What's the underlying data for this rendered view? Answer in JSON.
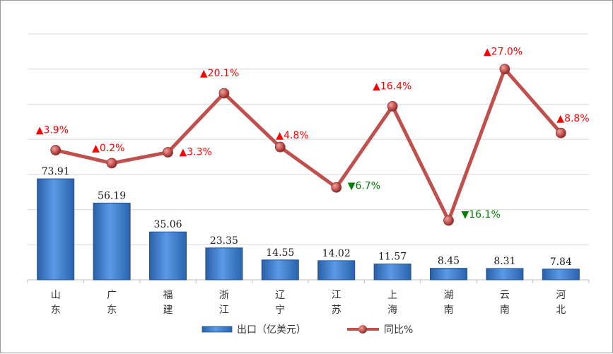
{
  "chart_data": {
    "type": "bar",
    "categories": [
      "山东",
      "广东",
      "福建",
      "浙江",
      "辽宁",
      "江苏",
      "上海",
      "湖南",
      "云南",
      "河北"
    ],
    "series": [
      {
        "name": "出口（亿美元）",
        "type": "bar",
        "values": [
          73.91,
          56.19,
          35.06,
          23.35,
          14.55,
          14.02,
          11.57,
          8.45,
          8.31,
          7.84
        ],
        "labels": [
          "73.91",
          "56.19",
          "35.06",
          "23.35",
          "14.55",
          "14.02",
          "11.57",
          "8.45",
          "8.31",
          "7.84"
        ],
        "color": "#3f7fd0"
      },
      {
        "name": "同比%",
        "type": "line",
        "values": [
          3.9,
          0.2,
          3.3,
          20.1,
          4.8,
          -6.7,
          16.4,
          -16.1,
          27.0,
          8.8
        ],
        "labels": [
          "▲3.9%",
          "▲0.2%",
          "▲3.3%",
          "▲20.1%",
          "▲4.8%",
          "▼6.7%",
          "▲16.4%",
          "▼16.1%",
          "▲27.0%",
          "▲8.8%"
        ],
        "color": "#c0504d"
      }
    ],
    "bar_ylim": [
      0,
      180
    ],
    "line_ylim": [
      -33,
      37
    ],
    "grid": true,
    "legend": "bottom",
    "colors": {
      "up": "#ff0000",
      "down": "#008000",
      "grid": "#d9d9d9"
    }
  }
}
